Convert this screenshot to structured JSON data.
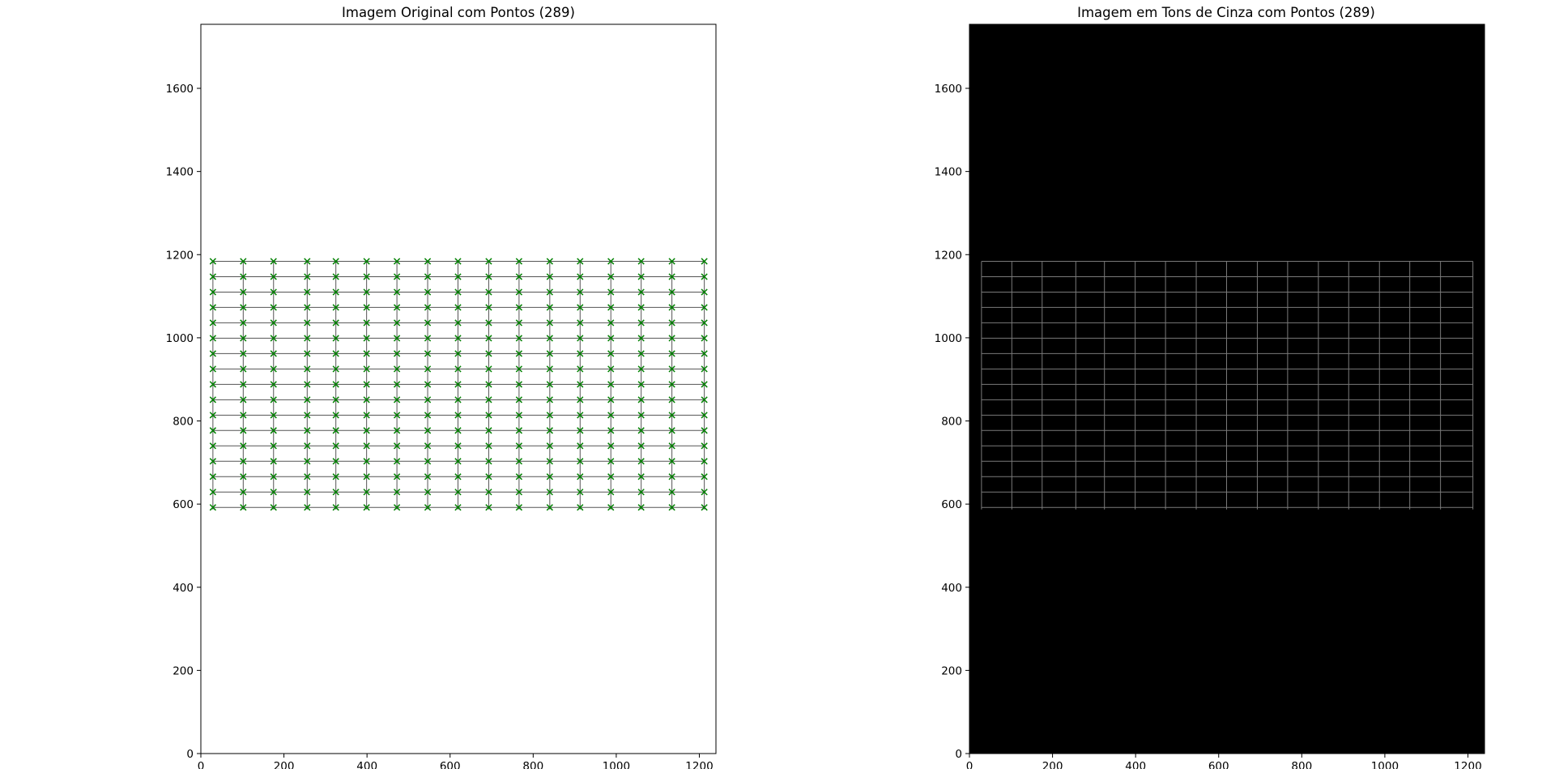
{
  "chart_data": [
    {
      "type": "scatter",
      "title": "Imagem Original com Pontos (289)",
      "xlim": [
        0,
        1240
      ],
      "ylim": [
        0,
        1754
      ],
      "x_ticks": [
        0,
        200,
        400,
        600,
        800,
        1000,
        1200
      ],
      "y_ticks": [
        0,
        200,
        400,
        600,
        800,
        1000,
        1200,
        1400,
        1600
      ],
      "background": "white",
      "image_line_color": "#555555",
      "marker": "x",
      "marker_color": "#008000",
      "grid_x": [
        29,
        102,
        175,
        256,
        325,
        399,
        472,
        546,
        619,
        693,
        766,
        840,
        913,
        987,
        1060,
        1134,
        1212
      ],
      "grid_y": [
        592,
        629,
        666,
        703,
        740,
        777,
        814,
        851,
        888,
        925,
        962,
        999,
        1036,
        1073,
        1110,
        1147,
        1184
      ],
      "point_count": 289
    },
    {
      "type": "scatter",
      "title": "Imagem em Tons de Cinza com Pontos (289)",
      "xlim": [
        0,
        1240
      ],
      "ylim": [
        0,
        1754
      ],
      "x_ticks": [
        0,
        200,
        400,
        600,
        800,
        1000,
        1200
      ],
      "y_ticks": [
        0,
        200,
        400,
        600,
        800,
        1000,
        1200,
        1400,
        1600
      ],
      "background": "black",
      "image_line_color": "#7a7a7a",
      "grid_x": [
        29,
        102,
        175,
        256,
        325,
        399,
        472,
        546,
        619,
        693,
        766,
        840,
        913,
        987,
        1060,
        1134,
        1212
      ],
      "grid_y": [
        592,
        629,
        666,
        703,
        740,
        777,
        814,
        851,
        888,
        925,
        962,
        999,
        1036,
        1073,
        1110,
        1147,
        1184
      ]
    }
  ]
}
